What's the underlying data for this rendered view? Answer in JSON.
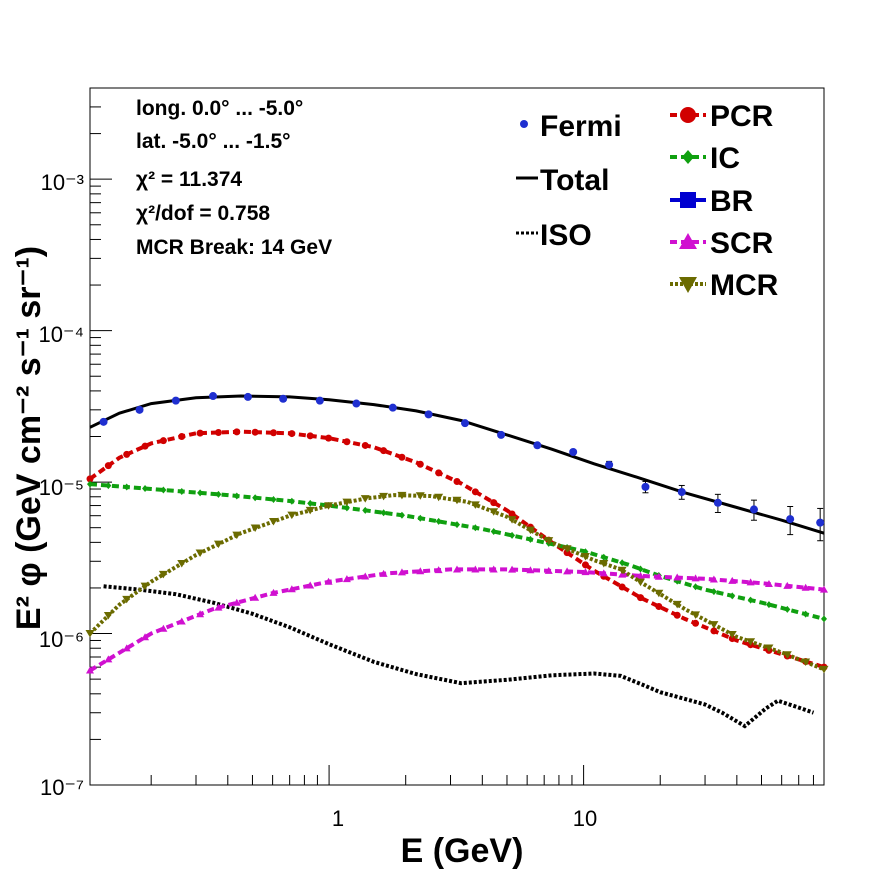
{
  "chart_data": {
    "type": "scatter",
    "xlabel": "E (GeV)",
    "ylabel": "E² φ (GeV cm⁻² s⁻¹ sr⁻¹)",
    "xscale": "log",
    "yscale": "log",
    "xlim": [
      0.115,
      88
    ],
    "ylim": [
      1e-07,
      0.004
    ],
    "x_tick_labels": [
      "1",
      "10"
    ],
    "y_tick_labels": [
      "10⁻⁷",
      "10⁻⁶",
      "10⁻⁵",
      "10⁻⁴",
      "10⁻³"
    ],
    "grid": false,
    "legend_placement": "top-right",
    "info_lines": [
      "long. 0.0° ... -5.0°",
      "lat. -5.0° ... -1.5°",
      "χ² = 11.374",
      "χ²/dof = 0.758",
      "MCR Break: 14 GeV"
    ],
    "legend": [
      {
        "label": "Fermi",
        "color": "#1f2fd0",
        "marker": "circle-small"
      },
      {
        "label": "Total",
        "color": "#000000",
        "marker": "line"
      },
      {
        "label": "ISO",
        "color": "#000000",
        "marker": "dotted"
      },
      {
        "label": "PCR",
        "color": "#d10000",
        "marker": "circle"
      },
      {
        "label": "IC",
        "color": "#10a010",
        "marker": "diamond"
      },
      {
        "label": "BR",
        "color": "#0000d0",
        "marker": "square"
      },
      {
        "label": "SCR",
        "color": "#d010d0",
        "marker": "triangle-up"
      },
      {
        "label": "MCR",
        "color": "#6b6b00",
        "marker": "triangle-down"
      }
    ],
    "fermi": {
      "x": [
        0.13,
        0.18,
        0.25,
        0.35,
        0.48,
        0.66,
        0.92,
        1.28,
        1.78,
        2.46,
        3.42,
        4.74,
        6.58,
        9.1,
        12.6,
        17.5,
        24.3,
        33.7,
        46.7,
        64.8,
        85.0
      ],
      "y": [
        2.5e-05,
        3e-05,
        3.45e-05,
        3.7e-05,
        3.65e-05,
        3.55e-05,
        3.45e-05,
        3.3e-05,
        3.1e-05,
        2.8e-05,
        2.45e-05,
        2.05e-05,
        1.75e-05,
        1.58e-05,
        1.3e-05,
        9.3e-06,
        8.6e-06,
        7.3e-06,
        6.6e-06,
        5.7e-06,
        5.4e-06
      ],
      "err_up": [
        0,
        0,
        0,
        0,
        0,
        0,
        0,
        0,
        0,
        0,
        0,
        0,
        0,
        0,
        7e-07,
        8e-07,
        9e-07,
        1e-06,
        1e-06,
        1.2e-06,
        1.3e-06
      ],
      "err_down": [
        0,
        0,
        0,
        0,
        0,
        0,
        0,
        0,
        0,
        0,
        0,
        0,
        0,
        0,
        7e-07,
        8e-07,
        9e-07,
        1e-06,
        1e-06,
        1.2e-06,
        1.3e-06
      ]
    },
    "series": [
      {
        "name": "Total",
        "color": "#000000",
        "style": "solid",
        "marker": "none",
        "x": [
          0.115,
          0.15,
          0.2,
          0.3,
          0.45,
          0.7,
          1.0,
          1.5,
          2.2,
          3.3,
          5.0,
          7.5,
          11.0,
          17.0,
          25.0,
          40.0,
          60.0,
          88.0
        ],
        "y": [
          2.3e-05,
          2.85e-05,
          3.3e-05,
          3.6e-05,
          3.7e-05,
          3.65e-05,
          3.5e-05,
          3.25e-05,
          2.95e-05,
          2.55e-05,
          2.05e-05,
          1.65e-05,
          1.32e-05,
          1.05e-05,
          8.5e-06,
          6.8e-06,
          5.6e-06,
          4.6e-06
        ]
      },
      {
        "name": "ISO",
        "color": "#000000",
        "style": "dotted",
        "marker": "none",
        "x": [
          0.13,
          0.18,
          0.25,
          0.35,
          0.5,
          0.7,
          1.0,
          1.5,
          2.2,
          3.3,
          5.0,
          7.5,
          11.0,
          14.0,
          17.0,
          20.0,
          25.0,
          30.0,
          35.0,
          43.0,
          52.0,
          58.0,
          68.0,
          80.0
        ],
        "y": [
          2.05e-06,
          1.95e-06,
          1.82e-06,
          1.6e-06,
          1.35e-06,
          1.1e-06,
          8.5e-07,
          6.5e-07,
          5.4e-07,
          4.7e-07,
          4.95e-07,
          5.3e-07,
          5.45e-07,
          5.25e-07,
          4.6e-07,
          4.1e-07,
          3.7e-07,
          3.4e-07,
          3e-07,
          2.45e-07,
          3.2e-07,
          3.6e-07,
          3.3e-07,
          3e-07
        ]
      },
      {
        "name": "PCR",
        "color": "#d10000",
        "style": "dashed",
        "marker": "circle",
        "x": [
          0.115,
          0.15,
          0.2,
          0.3,
          0.45,
          0.7,
          1.0,
          1.5,
          2.2,
          3.3,
          5.0,
          7.5,
          11.0,
          17.0,
          25.0,
          40.0,
          60.0,
          88.0
        ],
        "y": [
          1.05e-05,
          1.45e-05,
          1.8e-05,
          2.1e-05,
          2.15e-05,
          2.1e-05,
          1.95e-05,
          1.7e-05,
          1.35e-05,
          9.8e-06,
          6.5e-06,
          4e-06,
          2.6e-06,
          1.7e-06,
          1.25e-06,
          9e-07,
          7.3e-07,
          6e-07
        ]
      },
      {
        "name": "IC",
        "color": "#10a010",
        "style": "dashed",
        "marker": "diamond",
        "x": [
          0.115,
          0.2,
          0.4,
          0.7,
          1.0,
          2.0,
          4.0,
          7.0,
          10.0,
          15.0,
          20.0,
          30.0,
          50.0,
          88.0
        ],
        "y": [
          9.7e-06,
          9e-06,
          8.2e-06,
          7.5e-06,
          7e-06,
          6e-06,
          4.9e-06,
          4e-06,
          3.5e-06,
          2.85e-06,
          2.4e-06,
          1.95e-06,
          1.6e-06,
          1.25e-06
        ]
      },
      {
        "name": "SCR",
        "color": "#d010d0",
        "style": "dashed",
        "marker": "triangle-up",
        "x": [
          0.115,
          0.2,
          0.35,
          0.6,
          1.0,
          1.7,
          3.0,
          5.0,
          10.0,
          17.0,
          30.0,
          50.0,
          88.0
        ],
        "y": [
          5.7e-07,
          1e-06,
          1.45e-06,
          1.85e-06,
          2.2e-06,
          2.5e-06,
          2.65e-06,
          2.65e-06,
          2.55e-06,
          2.4e-06,
          2.3e-06,
          2.15e-06,
          1.95e-06
        ]
      },
      {
        "name": "MCR",
        "color": "#6b6b00",
        "style": "dotted",
        "marker": "triangle-down",
        "x": [
          0.115,
          0.15,
          0.2,
          0.3,
          0.45,
          0.7,
          1.0,
          1.4,
          1.8,
          2.5,
          3.5,
          5.0,
          7.5,
          11.0,
          14.0,
          17.0,
          25.0,
          40.0,
          60.0,
          88.0
        ],
        "y": [
          1e-06,
          1.55e-06,
          2.2e-06,
          3.3e-06,
          4.6e-06,
          6e-06,
          7e-06,
          7.8e-06,
          8.2e-06,
          8.1e-06,
          7.4e-06,
          5.9e-06,
          4e-06,
          3.05e-06,
          2.65e-06,
          2.15e-06,
          1.45e-06,
          9.5e-07,
          7.5e-07,
          5.8e-07
        ]
      }
    ]
  }
}
